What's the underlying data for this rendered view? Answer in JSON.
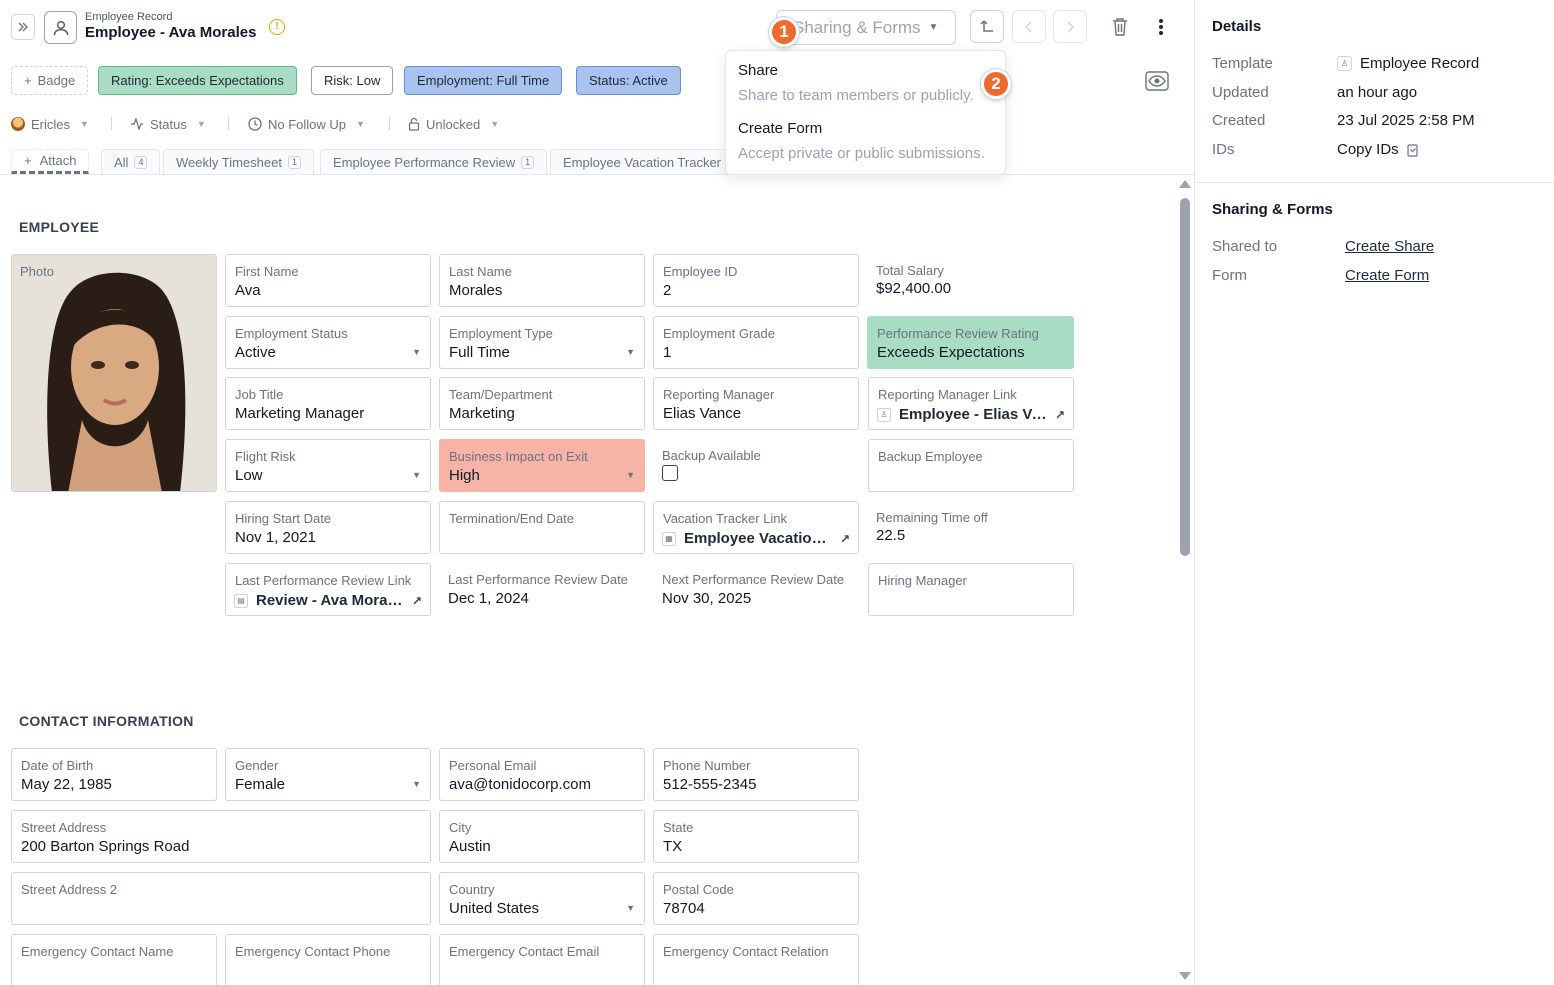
{
  "header": {
    "record_type": "Employee Record",
    "record_title": "Employee - Ava Morales",
    "share_button": "Sharing & Forms"
  },
  "badges": {
    "add": "Badge",
    "rating": "Rating: Exceeds Expectations",
    "risk": "Risk: Low",
    "employment": "Employment: Full Time",
    "status": "Status: Active"
  },
  "filters": {
    "owner": "Ericles",
    "status": "Status",
    "follow_up": "No Follow Up",
    "lock": "Unlocked"
  },
  "tabs": {
    "attach": "Attach",
    "items": [
      {
        "label": "All",
        "count": "4"
      },
      {
        "label": "Weekly Timesheet",
        "count": "1"
      },
      {
        "label": "Employee Performance Review",
        "count": "1"
      },
      {
        "label": "Employee Vacation Tracker",
        "count": ""
      }
    ]
  },
  "menu": {
    "share_title": "Share",
    "share_desc": "Share to team members or publicly.",
    "form_title": "Create Form",
    "form_desc": "Accept private or public submissions.",
    "step1": "1",
    "step2": "2"
  },
  "employee": {
    "section": "EMPLOYEE",
    "photo_label": "Photo",
    "first_name": {
      "label": "First Name",
      "value": "Ava"
    },
    "last_name": {
      "label": "Last Name",
      "value": "Morales"
    },
    "employee_id": {
      "label": "Employee ID",
      "value": "2"
    },
    "total_salary": {
      "label": "Total Salary",
      "value": "$92,400.00"
    },
    "employment_status": {
      "label": "Employment Status",
      "value": "Active"
    },
    "employment_type": {
      "label": "Employment Type",
      "value": "Full Time"
    },
    "employment_grade": {
      "label": "Employment Grade",
      "value": "1"
    },
    "performance_rating": {
      "label": "Performance Review Rating",
      "value": "Exceeds Expectations"
    },
    "job_title": {
      "label": "Job Title",
      "value": "Marketing Manager"
    },
    "team": {
      "label": "Team/Department",
      "value": "Marketing"
    },
    "reporting_manager": {
      "label": "Reporting Manager",
      "value": "Elias Vance"
    },
    "reporting_manager_link": {
      "label": "Reporting Manager Link",
      "value": "Employee - Elias Vance"
    },
    "flight_risk": {
      "label": "Flight Risk",
      "value": "Low"
    },
    "business_impact": {
      "label": "Business Impact on Exit",
      "value": "High"
    },
    "backup_available": {
      "label": "Backup Available"
    },
    "backup_employee": {
      "label": "Backup Employee",
      "value": ""
    },
    "hiring_start": {
      "label": "Hiring Start Date",
      "value": "Nov 1, 2021"
    },
    "termination": {
      "label": "Termination/End Date",
      "value": ""
    },
    "vacation_link": {
      "label": "Vacation Tracker Link",
      "value": "Employee Vacation Tracker"
    },
    "remaining_time": {
      "label": "Remaining Time off",
      "value": "22.5"
    },
    "last_review_link": {
      "label": "Last Performance Review Link",
      "value": "Review - Ava Morales"
    },
    "last_review_date": {
      "label": "Last Performance Review Date",
      "value": "Dec 1, 2024"
    },
    "next_review_date": {
      "label": "Next Performance Review Date",
      "value": "Nov 30, 2025"
    },
    "hiring_manager": {
      "label": "Hiring Manager",
      "value": ""
    }
  },
  "contact": {
    "section": "CONTACT INFORMATION",
    "dob": {
      "label": "Date of Birth",
      "value": "May 22, 1985"
    },
    "gender": {
      "label": "Gender",
      "value": "Female"
    },
    "email": {
      "label": "Personal Email",
      "value": "ava@tonidocorp.com"
    },
    "phone": {
      "label": "Phone Number",
      "value": "512-555-2345"
    },
    "street": {
      "label": "Street Address",
      "value": "200 Barton Springs Road"
    },
    "city": {
      "label": "City",
      "value": "Austin"
    },
    "state": {
      "label": "State",
      "value": "TX"
    },
    "street2": {
      "label": "Street Address 2",
      "value": ""
    },
    "country": {
      "label": "Country",
      "value": "United States"
    },
    "postal": {
      "label": "Postal Code",
      "value": "78704"
    },
    "ec_name": {
      "label": "Emergency Contact Name",
      "value": ""
    },
    "ec_phone": {
      "label": "Emergency Contact Phone",
      "value": ""
    },
    "ec_email": {
      "label": "Emergency Contact Email",
      "value": ""
    },
    "ec_relation": {
      "label": "Emergency Contact Relation",
      "value": ""
    }
  },
  "side": {
    "details_title": "Details",
    "template_k": "Template",
    "template_v": "Employee Record",
    "updated_k": "Updated",
    "updated_v": "an hour ago",
    "created_k": "Created",
    "created_v": "23 Jul 2025 2:58 PM",
    "ids_k": "IDs",
    "ids_v": "Copy IDs",
    "sharing_title": "Sharing & Forms",
    "shared_k": "Shared to",
    "shared_v": "Create Share",
    "form_k": "Form",
    "form_v": "Create Form"
  },
  "colors": {
    "rating_green": "#a8dcc5",
    "blue_badge": "#a9c3ef",
    "high_red": "#f7b3a6",
    "step_orange": "#ef6a2c"
  }
}
